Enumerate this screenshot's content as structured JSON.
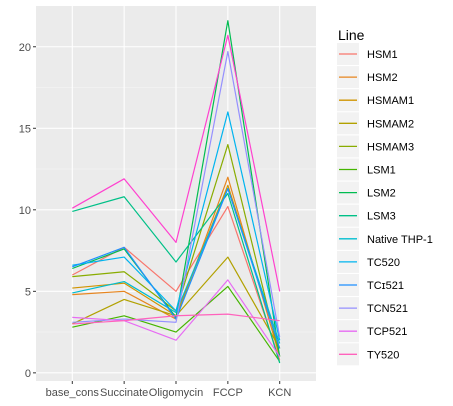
{
  "chart_data": {
    "type": "line",
    "title": "",
    "xlabel": "",
    "ylabel": "",
    "categories": [
      "base_cons",
      "Succinate",
      "Oligomycin",
      "FCCP",
      "KCN"
    ],
    "ylim": [
      -0.5,
      22.5
    ],
    "yticks": [
      0,
      5,
      10,
      15,
      20
    ],
    "grid": true,
    "legend": {
      "title": "Line",
      "position": "right"
    },
    "series": [
      {
        "name": "HSM1",
        "color": "#F8766D",
        "values": [
          6.0,
          7.7,
          5.0,
          10.2,
          0.8
        ]
      },
      {
        "name": "HSM2",
        "color": "#E7851E",
        "values": [
          4.8,
          5.0,
          3.3,
          12.0,
          1.0
        ]
      },
      {
        "name": "HSMAM1",
        "color": "#D09400",
        "values": [
          5.2,
          5.5,
          3.5,
          11.5,
          1.5
        ]
      },
      {
        "name": "HSMAM2",
        "color": "#B2A100",
        "values": [
          3.0,
          4.5,
          3.5,
          7.1,
          1.5
        ]
      },
      {
        "name": "HSMAM3",
        "color": "#89AC00",
        "values": [
          5.9,
          6.2,
          3.8,
          14.0,
          1.0
        ]
      },
      {
        "name": "LSM1",
        "color": "#45B500",
        "values": [
          2.8,
          3.5,
          2.5,
          5.3,
          0.7
        ]
      },
      {
        "name": "LSM2",
        "color": "#00BC51",
        "values": [
          6.4,
          7.6,
          3.4,
          21.6,
          1.0
        ]
      },
      {
        "name": "LSM3",
        "color": "#00C087",
        "values": [
          9.9,
          10.8,
          6.8,
          11.0,
          0.6
        ]
      },
      {
        "name": "Native THP-1",
        "color": "#00BDD0",
        "values": [
          4.9,
          5.6,
          3.7,
          11.3,
          1.8
        ]
      },
      {
        "name": "TC520",
        "color": "#00B4EF",
        "values": [
          6.6,
          7.1,
          3.8,
          16.0,
          2.0
        ]
      },
      {
        "name": "TCɪ521",
        "color": "#1E90FF",
        "values": [
          6.5,
          7.7,
          3.3,
          11.3,
          1.5
        ]
      },
      {
        "name": "TCN521",
        "color": "#9590FF",
        "values": [
          3.1,
          3.3,
          3.1,
          19.7,
          2.2
        ]
      },
      {
        "name": "TCP521",
        "color": "#E76BF3",
        "values": [
          3.4,
          3.2,
          2.0,
          5.7,
          1.0
        ]
      },
      {
        "name": "TY520",
        "color": "#FF62BC",
        "values": [
          3.0,
          3.2,
          3.5,
          3.6,
          3.2
        ]
      },
      {
        "name": "",
        "color": "#FF41CF",
        "values": [
          10.1,
          11.9,
          8.0,
          20.7,
          5.0
        ]
      }
    ]
  }
}
